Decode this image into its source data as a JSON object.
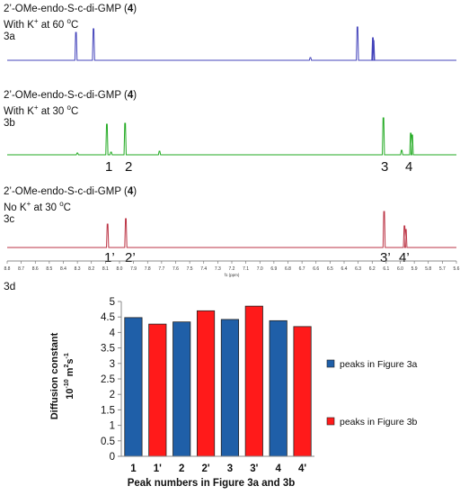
{
  "nmr": {
    "panel_a": {
      "line1": "2’-OMe-endo-S-c-di-GMP (",
      "compound": "4",
      "line1_end": ")",
      "line2_pre": "With K",
      "line2_sup": "+",
      "line2_post": " at 60 ",
      "unit_sup": "o",
      "unit": "C",
      "tag": "3a",
      "color": "#4444bb"
    },
    "panel_b": {
      "line1": "2’-OMe-endo-S-c-di-GMP (",
      "compound": "4",
      "line1_end": ")",
      "line2_pre": "With K",
      "line2_sup": "+",
      "line2_post": " at 30 ",
      "unit_sup": "o",
      "unit": "C",
      "tag": "3b",
      "color": "#22aa22",
      "peak_labels": [
        "1",
        "2",
        "3",
        "4"
      ]
    },
    "panel_c": {
      "line1": "2’-OMe-endo-S-c-di-GMP (",
      "compound": "4",
      "line1_end": ")",
      "line2_pre": "No K",
      "line2_sup": "+",
      "line2_post": " at 30 ",
      "unit_sup": "o",
      "unit": "C",
      "tag": "3c",
      "color": "#bb3344",
      "peak_labels": [
        "1’",
        "2’",
        "3’",
        "4’"
      ]
    },
    "ppm_ticks": [
      "8.8",
      "8.7",
      "8.6",
      "8.5",
      "8.4",
      "8.3",
      "8.2",
      "8.1",
      "8.0",
      "7.9",
      "7.8",
      "7.7",
      "7.6",
      "7.5",
      "7.4",
      "7.3",
      "7.2",
      "7.1",
      "7.0",
      "6.9",
      "6.8",
      "6.7",
      "6.6",
      "6.5",
      "6.4",
      "6.3",
      "6.2",
      "6.1",
      "6.0",
      "5.9",
      "5.8",
      "5.7",
      "5.6"
    ],
    "axis_unit": "f1 (ppm)"
  },
  "chart_data": {
    "type": "bar",
    "panel_tag": "3d",
    "categories": [
      "1",
      "1'",
      "2",
      "2'",
      "3",
      "3'",
      "4",
      "4'"
    ],
    "values": [
      4.48,
      4.27,
      4.34,
      4.7,
      4.42,
      4.85,
      4.38,
      4.19
    ],
    "bar_series": [
      "peaks in Figure 3a",
      "peaks in Figure 3b",
      "peaks in Figure 3a",
      "peaks in Figure 3b",
      "peaks in Figure 3a",
      "peaks in Figure 3b",
      "peaks in Figure 3a",
      "peaks in Figure 3b"
    ],
    "series": [
      {
        "name": "peaks in Figure 3a",
        "color": "#1f5fa8"
      },
      {
        "name": "peaks in Figure 3b",
        "color": "#ff1a1a"
      }
    ],
    "ylim": [
      0,
      5
    ],
    "yticks": [
      "0",
      "0.5",
      "1",
      "1.5",
      "2",
      "2.5",
      "3",
      "3.5",
      "4",
      "4.5",
      "5"
    ],
    "ylabel_line1": "Diffusion constant",
    "ylabel_pre": "10",
    "ylabel_exp": "-10",
    "ylabel_mid": " m",
    "ylabel_exp2": "2",
    "ylabel_unit": "s",
    "ylabel_exp3": "-1",
    "xlabel": "Peak numbers in Figure 3a and 3b",
    "grid": false,
    "legend_position": "right"
  }
}
